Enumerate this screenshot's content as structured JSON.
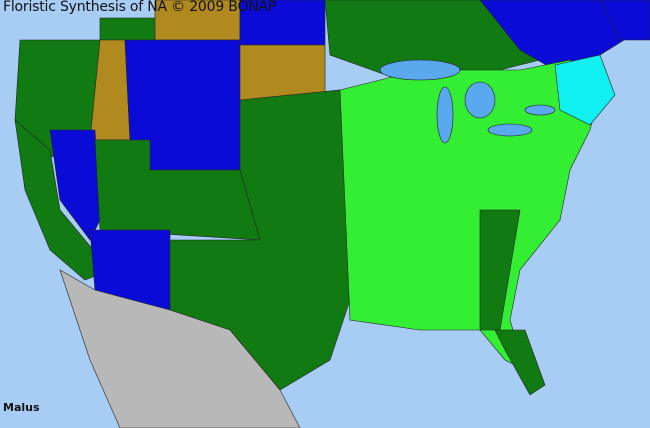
{
  "header": {
    "title": "Floristic Synthesis of NA © 2009 BONAP"
  },
  "map": {
    "taxon": "Malus",
    "colors": {
      "water": "#a8cdf5",
      "present_native": "#127a12",
      "present_county": "#33ee33",
      "present_state_blue": "#0b0bd8",
      "cyan": "#11f0f0",
      "absent_state": "#b08a1e",
      "outside_area": "#b8b8b8",
      "canada_province": "#0f7a0f",
      "lakes": "#5aa8ee"
    }
  }
}
